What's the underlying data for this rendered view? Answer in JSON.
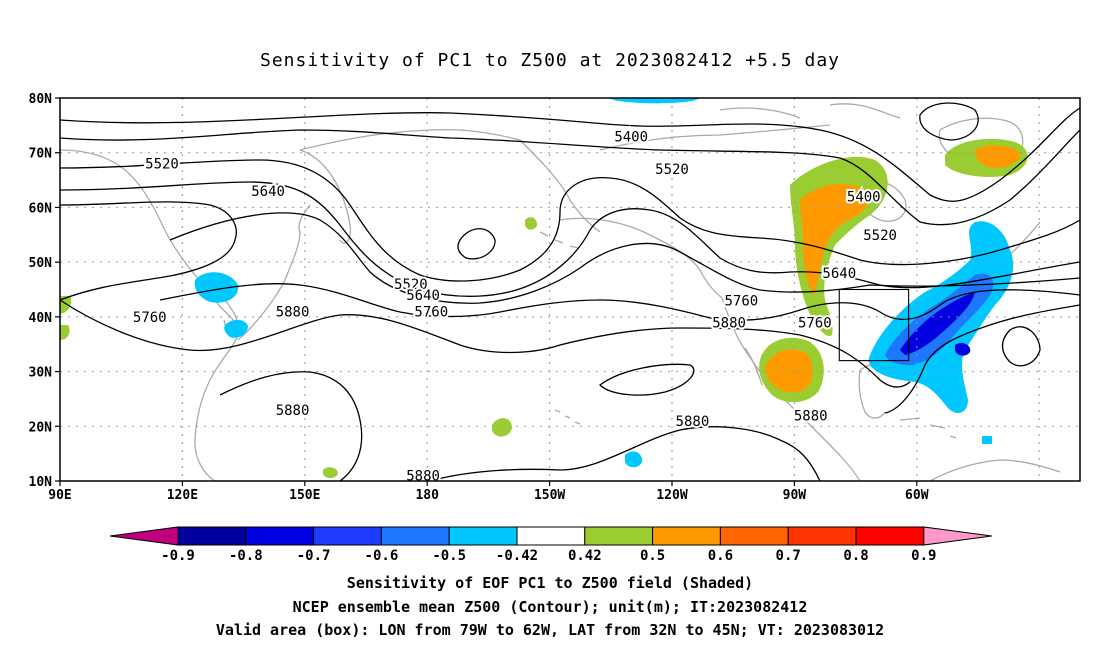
{
  "title": "Sensitivity of PC1 to Z500 at 2023082412 +5.5 day",
  "lat_labels": [
    "80N",
    "70N",
    "60N",
    "50N",
    "40N",
    "30N",
    "20N",
    "10N"
  ],
  "lon_labels": [
    "90E",
    "120E",
    "150E",
    "180",
    "150W",
    "120W",
    "90W",
    "60W"
  ],
  "contour_labels": [
    {
      "text": "5400",
      "lon": 230,
      "lat": 73
    },
    {
      "text": "5400",
      "lon": 287,
      "lat": 62
    },
    {
      "text": "5520",
      "lon": 115,
      "lat": 68
    },
    {
      "text": "5520",
      "lon": 240,
      "lat": 67
    },
    {
      "text": "5520",
      "lon": 291,
      "lat": 55
    },
    {
      "text": "5520",
      "lon": 176,
      "lat": 46
    },
    {
      "text": "5640",
      "lon": 141,
      "lat": 63
    },
    {
      "text": "5640",
      "lon": 179,
      "lat": 44
    },
    {
      "text": "5640",
      "lon": 281,
      "lat": 48
    },
    {
      "text": "5760",
      "lon": 112,
      "lat": 40
    },
    {
      "text": "5760",
      "lon": 181,
      "lat": 41
    },
    {
      "text": "5760",
      "lon": 257,
      "lat": 43
    },
    {
      "text": "5760",
      "lon": 275,
      "lat": 39
    },
    {
      "text": "5880",
      "lon": 147,
      "lat": 41
    },
    {
      "text": "5880",
      "lon": 254,
      "lat": 39
    },
    {
      "text": "5880",
      "lon": 147,
      "lat": 23
    },
    {
      "text": "5880",
      "lon": 245,
      "lat": 21
    },
    {
      "text": "5880",
      "lon": 274,
      "lat": 22
    },
    {
      "text": "5880",
      "lon": 179,
      "lat": 11
    }
  ],
  "colorbar": {
    "colors": [
      "#c0007f",
      "#00009c",
      "#0000e0",
      "#1c3cff",
      "#1e78ff",
      "#00c8ff",
      "#ffffff",
      "#9acd32",
      "#ff9900",
      "#ff6600",
      "#ff3300",
      "#ff0000",
      "#ff99cc"
    ],
    "labels": [
      "-0.9",
      "-0.8",
      "-0.7",
      "-0.6",
      "-0.5",
      "-0.42",
      "0.42",
      "0.5",
      "0.6",
      "0.7",
      "0.8",
      "0.9"
    ]
  },
  "footer": {
    "line1": "Sensitivity of EOF PC1 to Z500 field (Shaded)",
    "line2": "NCEP ensemble mean Z500 (Contour); unit(m); IT:2023082412",
    "line3": "Valid area (box): LON from 79W to 62W, LAT from 32N to 45N; VT: 2023083012"
  },
  "valid_box": {
    "lon_min": -79,
    "lon_max": -62,
    "lat_min": 32,
    "lat_max": 45
  }
}
